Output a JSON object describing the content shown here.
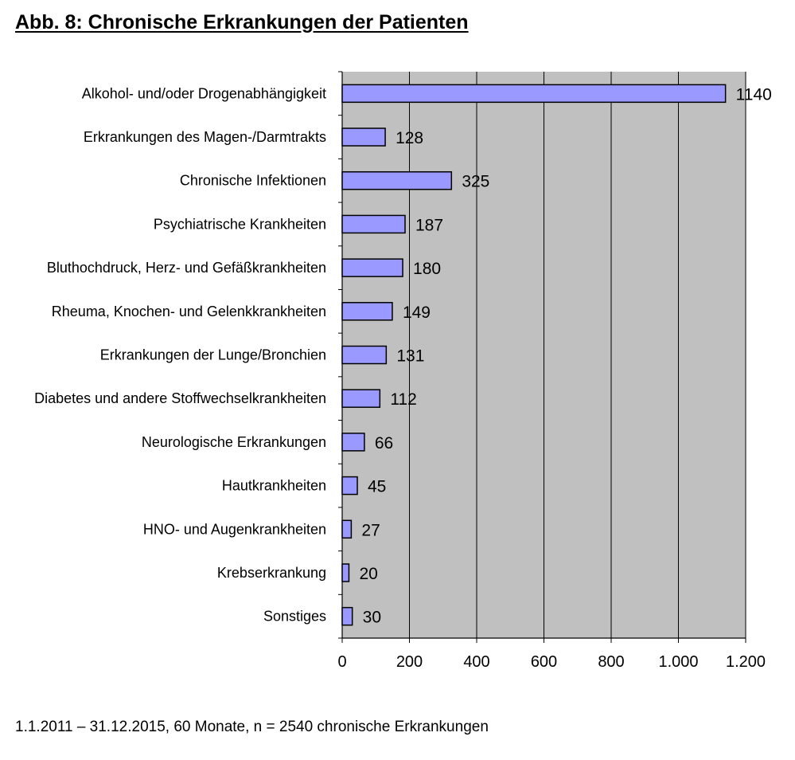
{
  "title": "Abb. 8: Chronische Erkrankungen der Patienten",
  "footnote": "1.1.2011 – 31.12.2015, 60 Monate, n = 2540 chronische Erkrankungen",
  "colors": {
    "plot_background": "#c0c0c0",
    "bar_fill": "#9999ff",
    "bar_stroke": "#000000",
    "grid": "#000000"
  },
  "chart_data": {
    "type": "bar",
    "orientation": "horizontal",
    "title": "Abb. 8: Chronische Erkrankungen der Patienten",
    "xlabel": "",
    "ylabel": "",
    "xlim": [
      0,
      1200
    ],
    "ticks": [
      0,
      200,
      400,
      600,
      800,
      1000,
      1200
    ],
    "tick_labels": [
      "0",
      "200",
      "400",
      "600",
      "800",
      "1.000",
      "1.200"
    ],
    "grid": "vertical",
    "categories": [
      "Alkohol- und/oder Drogenabhängigkeit",
      "Erkrankungen des Magen-/Darmtrakts",
      "Chronische Infektionen",
      "Psychiatrische Krankheiten",
      "Bluthochdruck, Herz- und Gefäßkrankheiten",
      "Rheuma, Knochen- und Gelenkkrankheiten",
      "Erkrankungen der Lunge/Bronchien",
      "Diabetes und andere Stoffwechselkrankheiten",
      "Neurologische Erkrankungen",
      "Hautkrankheiten",
      "HNO- und Augenkrankheiten",
      "Krebserkrankung",
      "Sonstiges"
    ],
    "values": [
      1140,
      128,
      325,
      187,
      180,
      149,
      131,
      112,
      66,
      45,
      27,
      20,
      30
    ],
    "data_labels": [
      "1140",
      "128",
      "325",
      "187",
      "180",
      "149",
      "131",
      "112",
      "66",
      "45",
      "27",
      "20",
      "30"
    ]
  }
}
